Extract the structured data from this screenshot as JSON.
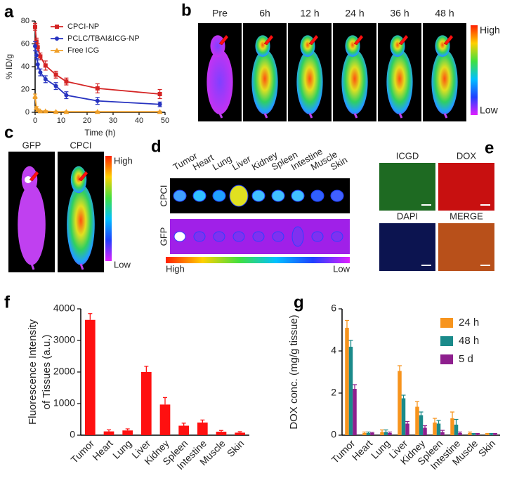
{
  "panel_labels": [
    "a",
    "b",
    "c",
    "d",
    "e",
    "f",
    "g"
  ],
  "imaging": {
    "b": {
      "timepoints": [
        "Pre",
        "6h",
        "12 h",
        "24 h",
        "36 h",
        "48 h"
      ],
      "scale_high": "High",
      "scale_low": "Low"
    },
    "c": {
      "labels": [
        "GFP",
        "CPCI"
      ],
      "scale_high": "High",
      "scale_low": "Low"
    },
    "d": {
      "tissues": [
        "Tumor",
        "Heart",
        "Lung",
        "Liver",
        "Kidney",
        "Spleen",
        "Intestine",
        "Muscle",
        "Skin"
      ],
      "rows": [
        "CPCI",
        "GFP"
      ],
      "scale_high": "High",
      "scale_low": "Low"
    },
    "e": {
      "labels": [
        "ICGD",
        "DOX",
        "DAPI",
        "MERGE"
      ]
    }
  },
  "chart_data": [
    {
      "type": "line",
      "xlabel": "Time (h)",
      "ylabel": "% ID/g",
      "x": [
        0,
        0.5,
        1,
        2,
        4,
        8,
        12,
        24,
        48
      ],
      "xlim": [
        0,
        50
      ],
      "xticks": [
        0,
        10,
        20,
        30,
        40,
        50
      ],
      "ylim": [
        0,
        80
      ],
      "yticks": [
        0,
        20,
        40,
        60,
        80
      ],
      "legend": "upper right",
      "series": [
        {
          "name": "CPCI-NP",
          "color": "#d42424",
          "marker": "square",
          "values": [
            75,
            62,
            57,
            49,
            41,
            33,
            27,
            21,
            16
          ],
          "errors": [
            3,
            3,
            3,
            3,
            4,
            3,
            3,
            4,
            4
          ]
        },
        {
          "name": "PCLC/TBAI&ICG-NP",
          "color": "#2733c0",
          "marker": "circle",
          "values": [
            58,
            50,
            42,
            35,
            29,
            23,
            15,
            10,
            7
          ],
          "errors": [
            4,
            3,
            4,
            3,
            3,
            3,
            3,
            3,
            2
          ]
        },
        {
          "name": "Free ICG",
          "color": "#f0a02a",
          "marker": "triangle",
          "values": [
            14,
            4,
            2,
            1,
            1,
            0.5,
            0.5,
            0.5,
            0.5
          ],
          "errors": [
            2,
            1,
            1,
            0.5,
            0.5,
            0.5,
            0.5,
            0.5,
            0.5
          ]
        }
      ]
    },
    {
      "type": "bar",
      "ylabel": [
        "Fluorescence Intensity",
        "of Tissues (a.u.)"
      ],
      "categories": [
        "Tumor",
        "Heart",
        "Lung",
        "Liver",
        "Kidney",
        "Spleen",
        "Intestine",
        "Muscle",
        "Skin"
      ],
      "values": [
        3650,
        120,
        150,
        2000,
        970,
        300,
        400,
        110,
        80
      ],
      "errors": [
        200,
        50,
        50,
        180,
        220,
        80,
        80,
        40,
        30
      ],
      "color": "#ff1010",
      "ylim": [
        0,
        4000
      ],
      "yticks": [
        0,
        1000,
        2000,
        3000,
        4000
      ]
    },
    {
      "type": "bar",
      "ylabel": [
        "DOX conc. (mg/g tissue)"
      ],
      "categories": [
        "Tumor",
        "Heart",
        "Lung",
        "Liver",
        "Kidney",
        "Spleen",
        "Intestine",
        "Muscle",
        "Skin"
      ],
      "ylim": [
        0,
        6
      ],
      "yticks": [
        0,
        2,
        4,
        6
      ],
      "legend": "upper right",
      "series": [
        {
          "name": "24 h",
          "color": "#f7941d",
          "values": [
            5.1,
            0.1,
            0.15,
            3.05,
            1.35,
            0.6,
            0.8,
            0.1,
            0.05
          ],
          "errors": [
            0.35,
            0.05,
            0.1,
            0.25,
            0.25,
            0.2,
            0.3,
            0.05,
            0.03
          ]
        },
        {
          "name": "48 h",
          "color": "#1a8a8a",
          "values": [
            4.2,
            0.1,
            0.15,
            1.75,
            0.95,
            0.55,
            0.5,
            0.05,
            0.05
          ],
          "errors": [
            0.3,
            0.05,
            0.1,
            0.15,
            0.15,
            0.15,
            0.25,
            0.03,
            0.03
          ]
        },
        {
          "name": "5 d",
          "color": "#8e1f8e",
          "values": [
            2.2,
            0.1,
            0.1,
            0.55,
            0.35,
            0.15,
            0.1,
            0.05,
            0.05
          ],
          "errors": [
            0.2,
            0.03,
            0.05,
            0.1,
            0.1,
            0.08,
            0.05,
            0.03,
            0.03
          ]
        }
      ]
    }
  ]
}
